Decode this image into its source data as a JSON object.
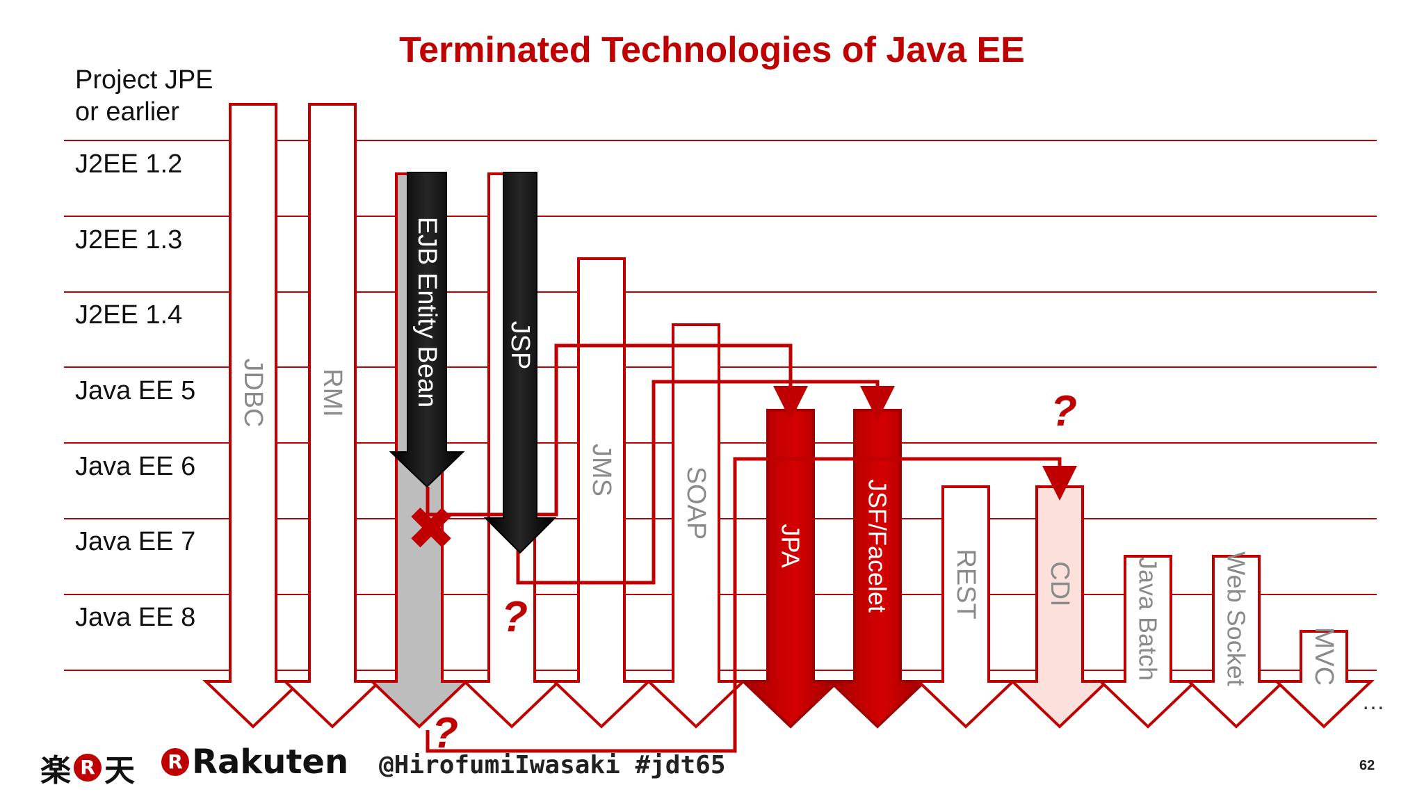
{
  "title": "Terminated Technologies of Java EE",
  "rows": [
    {
      "label": "Project JPE\nor earlier"
    },
    {
      "label": "J2EE 1.2"
    },
    {
      "label": "J2EE 1.3"
    },
    {
      "label": "J2EE 1.4"
    },
    {
      "label": "Java EE 5"
    },
    {
      "label": "Java EE 6"
    },
    {
      "label": "Java EE 7"
    },
    {
      "label": "Java EE 8"
    }
  ],
  "technologies": [
    {
      "label": "JDBC",
      "style": "outline"
    },
    {
      "label": "RMI",
      "style": "outline"
    },
    {
      "label": "EJB",
      "style": "gray"
    },
    {
      "label": "",
      "style": "outline"
    },
    {
      "label": "JMS",
      "style": "outline"
    },
    {
      "label": "SOAP",
      "style": "outline"
    },
    {
      "label": "JPA",
      "style": "red"
    },
    {
      "label": "JSF/Facelet",
      "style": "red"
    },
    {
      "label": "REST",
      "style": "outline"
    },
    {
      "label": "CDI",
      "style": "pink"
    },
    {
      "label": "Java Batch",
      "style": "outline"
    },
    {
      "label": "Web Socket",
      "style": "outline"
    },
    {
      "label": "MVC",
      "style": "outline"
    }
  ],
  "terminated": [
    {
      "label": "EJB Entity Bean"
    },
    {
      "label": "JSP"
    }
  ],
  "question_mark": "?",
  "cross_mark": "✖",
  "ellipsis": "…",
  "footer": {
    "logo_jp_left": "楽",
    "logo_jp_mid": "R",
    "logo_jp_right": "天",
    "logo_en_mark": "R",
    "logo_en_text": "Rakuten",
    "handle": "@HirofumiIwasaki #jdt65",
    "page_number": "62"
  },
  "colors": {
    "accent": "#c00000",
    "terminated": "#0a0a0a",
    "gray": "#bdbdbd",
    "pink": "#fbe0dc",
    "line": "#c00000"
  }
}
